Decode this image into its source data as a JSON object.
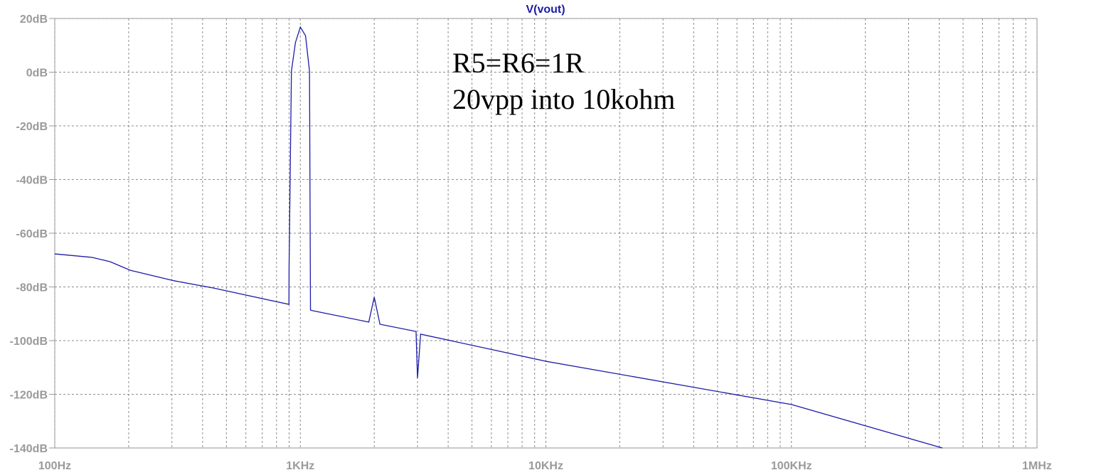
{
  "chart_data": {
    "type": "line",
    "title": "V(vout)",
    "annotations": [
      "R5=R6=1R",
      "20vpp into 10kohm"
    ],
    "x_scale": "log",
    "grid": true,
    "xlim": [
      100,
      1000000
    ],
    "ylim": [
      -140,
      20
    ],
    "xticks": [
      {
        "value": 100,
        "label": "100Hz"
      },
      {
        "value": 1000,
        "label": "1KHz"
      },
      {
        "value": 10000,
        "label": "10KHz"
      },
      {
        "value": 100000,
        "label": "100KHz"
      },
      {
        "value": 1000000,
        "label": "1MHz"
      }
    ],
    "xminorticks": [
      200,
      300,
      400,
      500,
      600,
      700,
      800,
      900,
      2000,
      3000,
      4000,
      5000,
      6000,
      7000,
      8000,
      9000,
      20000,
      30000,
      40000,
      50000,
      60000,
      70000,
      80000,
      90000,
      200000,
      300000,
      400000,
      500000,
      600000,
      700000,
      800000,
      900000
    ],
    "yticks": [
      {
        "value": 20,
        "label": "20dB"
      },
      {
        "value": 0,
        "label": "0dB"
      },
      {
        "value": -20,
        "label": "-20dB"
      },
      {
        "value": -40,
        "label": "-40dB"
      },
      {
        "value": -60,
        "label": "-60dB"
      },
      {
        "value": -80,
        "label": "-80dB"
      },
      {
        "value": -100,
        "label": "-100dB"
      },
      {
        "value": -120,
        "label": "-120dB"
      },
      {
        "value": -140,
        "label": "-140dB"
      }
    ],
    "series": [
      {
        "name": "V(vout)",
        "color": "#1c1ca8",
        "x": [
          100,
          142,
          168,
          203,
          306,
          442,
          899,
          900,
          920,
          955,
          1000,
          1050,
          1090,
          1100,
          1130,
          1900,
          2000,
          2110,
          2960,
          3000,
          3090,
          10000,
          100000,
          412000
        ],
        "values": [
          -67.7,
          -69,
          -70.6,
          -73.8,
          -77.7,
          -80.4,
          -86.5,
          -72.5,
          0.4,
          11,
          16.8,
          13.6,
          0.4,
          -88.6,
          -88.9,
          -93.1,
          -83.8,
          -93.9,
          -96.6,
          -114,
          -97.6,
          -107.7,
          -123.8,
          -140
        ]
      }
    ]
  }
}
